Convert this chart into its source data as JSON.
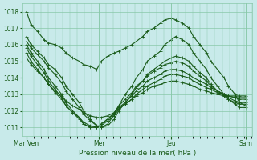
{
  "bg_color": "#c8eaea",
  "grid_color": "#88c8a8",
  "line_color": "#1a5c1a",
  "xlabel": "Pression niveau de la mer( hPa )",
  "xlabel_color": "#1a5c1a",
  "yticks": [
    1011,
    1012,
    1013,
    1014,
    1015,
    1016,
    1017,
    1018
  ],
  "ylim": [
    1010.5,
    1018.5
  ],
  "xtick_labels": [
    "Mar Ven",
    "Mer",
    "Jeu",
    "Sam"
  ],
  "xtick_positions": [
    0,
    0.33,
    0.66,
    1.0
  ],
  "figsize": [
    3.2,
    2.0
  ],
  "dpi": 100,
  "series": [
    {
      "x": [
        0.0,
        0.02,
        0.05,
        0.08,
        0.1,
        0.13,
        0.16,
        0.18,
        0.21,
        0.24,
        0.26,
        0.29,
        0.32,
        0.34,
        0.37,
        0.4,
        0.42,
        0.45,
        0.48,
        0.5,
        0.53,
        0.55,
        0.58,
        0.61,
        0.63,
        0.66,
        0.68,
        0.71,
        0.74,
        0.76,
        0.79,
        0.82,
        0.84,
        0.87,
        0.9,
        0.92,
        0.95,
        0.97,
        1.0
      ],
      "y": [
        1018.0,
        1017.2,
        1016.8,
        1016.3,
        1016.1,
        1016.0,
        1015.8,
        1015.5,
        1015.2,
        1015.0,
        1014.8,
        1014.7,
        1014.5,
        1015.0,
        1015.3,
        1015.5,
        1015.6,
        1015.8,
        1016.0,
        1016.2,
        1016.5,
        1016.8,
        1017.0,
        1017.3,
        1017.5,
        1017.6,
        1017.5,
        1017.3,
        1017.0,
        1016.5,
        1016.0,
        1015.5,
        1015.0,
        1014.5,
        1014.0,
        1013.5,
        1013.0,
        1012.5,
        1012.3
      ]
    },
    {
      "x": [
        0.0,
        0.02,
        0.05,
        0.08,
        0.1,
        0.13,
        0.16,
        0.18,
        0.21,
        0.24,
        0.26,
        0.29,
        0.32,
        0.34,
        0.37,
        0.4,
        0.42,
        0.45,
        0.48,
        0.5,
        0.53,
        0.55,
        0.58,
        0.61,
        0.63,
        0.66,
        0.68,
        0.71,
        0.74,
        0.76,
        0.79,
        0.82,
        0.84,
        0.87,
        0.9,
        0.92,
        0.95,
        0.97,
        1.0
      ],
      "y": [
        1016.5,
        1016.0,
        1015.6,
        1015.2,
        1014.8,
        1014.5,
        1014.0,
        1013.5,
        1013.0,
        1012.5,
        1012.0,
        1011.5,
        1011.1,
        1011.0,
        1011.2,
        1011.8,
        1012.3,
        1013.0,
        1013.5,
        1014.0,
        1014.5,
        1015.0,
        1015.3,
        1015.6,
        1016.0,
        1016.3,
        1016.5,
        1016.3,
        1016.0,
        1015.5,
        1015.0,
        1014.5,
        1014.0,
        1013.5,
        1013.0,
        1012.7,
        1012.4,
        1012.2,
        1012.2
      ]
    },
    {
      "x": [
        0.0,
        0.02,
        0.05,
        0.08,
        0.1,
        0.13,
        0.16,
        0.18,
        0.21,
        0.24,
        0.26,
        0.29,
        0.32,
        0.34,
        0.37,
        0.4,
        0.42,
        0.45,
        0.48,
        0.5,
        0.53,
        0.55,
        0.58,
        0.61,
        0.63,
        0.66,
        0.68,
        0.71,
        0.74,
        0.76,
        0.79,
        0.82,
        0.84,
        0.87,
        0.9,
        0.92,
        0.95,
        0.97,
        1.0
      ],
      "y": [
        1016.2,
        1015.8,
        1015.4,
        1015.0,
        1014.6,
        1014.2,
        1013.7,
        1013.2,
        1012.7,
        1012.2,
        1011.8,
        1011.4,
        1011.1,
        1011.0,
        1011.1,
        1011.5,
        1012.0,
        1012.5,
        1013.0,
        1013.4,
        1013.8,
        1014.2,
        1014.5,
        1014.8,
        1015.0,
        1015.2,
        1015.3,
        1015.2,
        1015.0,
        1014.7,
        1014.3,
        1014.0,
        1013.6,
        1013.2,
        1012.9,
        1012.7,
        1012.5,
        1012.4,
        1012.4
      ]
    },
    {
      "x": [
        0.0,
        0.02,
        0.05,
        0.08,
        0.1,
        0.13,
        0.16,
        0.18,
        0.21,
        0.24,
        0.26,
        0.29,
        0.32,
        0.34,
        0.37,
        0.4,
        0.42,
        0.45,
        0.48,
        0.5,
        0.53,
        0.55,
        0.58,
        0.61,
        0.63,
        0.66,
        0.68,
        0.71,
        0.74,
        0.76,
        0.79,
        0.82,
        0.84,
        0.87,
        0.9,
        0.92,
        0.95,
        0.97,
        1.0
      ],
      "y": [
        1016.0,
        1015.5,
        1015.0,
        1014.5,
        1014.0,
        1013.5,
        1013.0,
        1012.5,
        1012.0,
        1011.6,
        1011.2,
        1011.0,
        1011.0,
        1011.2,
        1011.5,
        1011.9,
        1012.3,
        1012.7,
        1013.1,
        1013.5,
        1013.8,
        1014.1,
        1014.4,
        1014.6,
        1014.8,
        1014.9,
        1015.0,
        1014.9,
        1014.7,
        1014.4,
        1014.1,
        1013.8,
        1013.5,
        1013.2,
        1013.0,
        1012.8,
        1012.6,
        1012.5,
        1012.5
      ]
    },
    {
      "x": [
        0.0,
        0.02,
        0.05,
        0.08,
        0.1,
        0.13,
        0.16,
        0.18,
        0.21,
        0.24,
        0.26,
        0.29,
        0.32,
        0.34,
        0.37,
        0.4,
        0.42,
        0.45,
        0.48,
        0.5,
        0.53,
        0.55,
        0.58,
        0.61,
        0.63,
        0.66,
        0.68,
        0.71,
        0.74,
        0.76,
        0.79,
        0.82,
        0.84,
        0.87,
        0.9,
        0.92,
        0.95,
        0.97,
        1.0
      ],
      "y": [
        1015.8,
        1015.3,
        1014.8,
        1014.3,
        1013.8,
        1013.3,
        1012.8,
        1012.3,
        1011.9,
        1011.5,
        1011.2,
        1011.0,
        1011.0,
        1011.2,
        1011.5,
        1011.8,
        1012.2,
        1012.5,
        1012.9,
        1013.2,
        1013.5,
        1013.8,
        1014.0,
        1014.2,
        1014.4,
        1014.5,
        1014.5,
        1014.4,
        1014.2,
        1014.0,
        1013.8,
        1013.6,
        1013.4,
        1013.2,
        1013.0,
        1012.9,
        1012.8,
        1012.7,
        1012.7
      ]
    },
    {
      "x": [
        0.0,
        0.02,
        0.05,
        0.08,
        0.1,
        0.13,
        0.16,
        0.18,
        0.21,
        0.24,
        0.26,
        0.29,
        0.32,
        0.34,
        0.37,
        0.4,
        0.42,
        0.45,
        0.48,
        0.5,
        0.53,
        0.55,
        0.58,
        0.61,
        0.63,
        0.66,
        0.68,
        0.71,
        0.74,
        0.76,
        0.79,
        0.82,
        0.84,
        0.87,
        0.9,
        0.92,
        0.95,
        0.97,
        1.0
      ],
      "y": [
        1015.5,
        1015.0,
        1014.5,
        1014.0,
        1013.6,
        1013.1,
        1012.7,
        1012.3,
        1011.9,
        1011.6,
        1011.3,
        1011.1,
        1011.0,
        1011.1,
        1011.4,
        1011.7,
        1012.1,
        1012.4,
        1012.7,
        1013.0,
        1013.3,
        1013.5,
        1013.7,
        1013.9,
        1014.1,
        1014.2,
        1014.2,
        1014.1,
        1014.0,
        1013.8,
        1013.6,
        1013.4,
        1013.3,
        1013.1,
        1013.0,
        1012.9,
        1012.8,
        1012.8,
        1012.8
      ]
    },
    {
      "x": [
        0.0,
        0.02,
        0.05,
        0.08,
        0.1,
        0.13,
        0.16,
        0.18,
        0.21,
        0.24,
        0.26,
        0.29,
        0.32,
        0.34,
        0.37,
        0.4,
        0.42,
        0.45,
        0.48,
        0.5,
        0.53,
        0.55,
        0.58,
        0.61,
        0.63,
        0.66,
        0.68,
        0.71,
        0.74,
        0.76,
        0.79,
        0.82,
        0.84,
        0.87,
        0.9,
        0.92,
        0.95,
        0.97,
        1.0
      ],
      "y": [
        1015.2,
        1014.8,
        1014.4,
        1014.0,
        1013.6,
        1013.2,
        1012.9,
        1012.6,
        1012.3,
        1012.1,
        1011.9,
        1011.7,
        1011.6,
        1011.6,
        1011.7,
        1011.9,
        1012.2,
        1012.4,
        1012.7,
        1012.9,
        1013.1,
        1013.3,
        1013.5,
        1013.6,
        1013.7,
        1013.8,
        1013.8,
        1013.7,
        1013.6,
        1013.5,
        1013.3,
        1013.2,
        1013.1,
        1013.0,
        1012.9,
        1012.9,
        1012.9,
        1012.9,
        1012.9
      ]
    }
  ],
  "marker": "+",
  "linewidth": 0.8,
  "markersize": 2.5,
  "markeredgewidth": 0.6
}
